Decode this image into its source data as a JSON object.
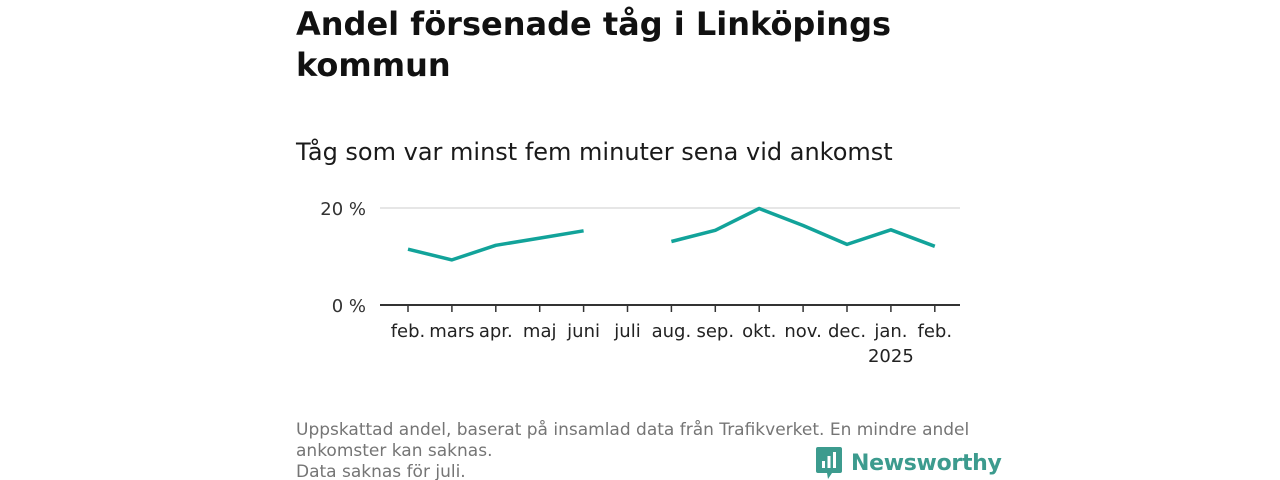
{
  "header": {
    "title": "Andel försenade tåg i Linköpings kommun",
    "subtitle": "Tåg som var minst fem minuter sena vid ankomst"
  },
  "chart_data": {
    "type": "line",
    "categories": [
      "feb.",
      "mars",
      "apr.",
      "maj",
      "juni",
      "juli",
      "aug.",
      "sep.",
      "okt.",
      "nov.",
      "dec.",
      "jan.",
      "feb."
    ],
    "year_label": "2025",
    "series": [
      {
        "values": [
          11.5,
          9.3,
          12.3,
          13.8,
          15.3,
          null,
          13.1,
          15.4,
          19.9,
          16.4,
          12.5,
          15.5,
          12.1
        ],
        "color": "#12a39a"
      }
    ],
    "ylim": [
      0,
      20
    ],
    "yticks": [
      0,
      20
    ],
    "ytick_labels": [
      "0 %",
      "20 %"
    ],
    "grid": true
  },
  "footnote": {
    "line1": "Uppskattad andel, baserat på insamlad data från Trafikverket. En mindre andel ankomster kan saknas.",
    "line2": "Data saknas för juli."
  },
  "brand": {
    "name": "Newsworthy",
    "icon": "newsworthy-logo-icon",
    "color": "#3c9b8e"
  }
}
